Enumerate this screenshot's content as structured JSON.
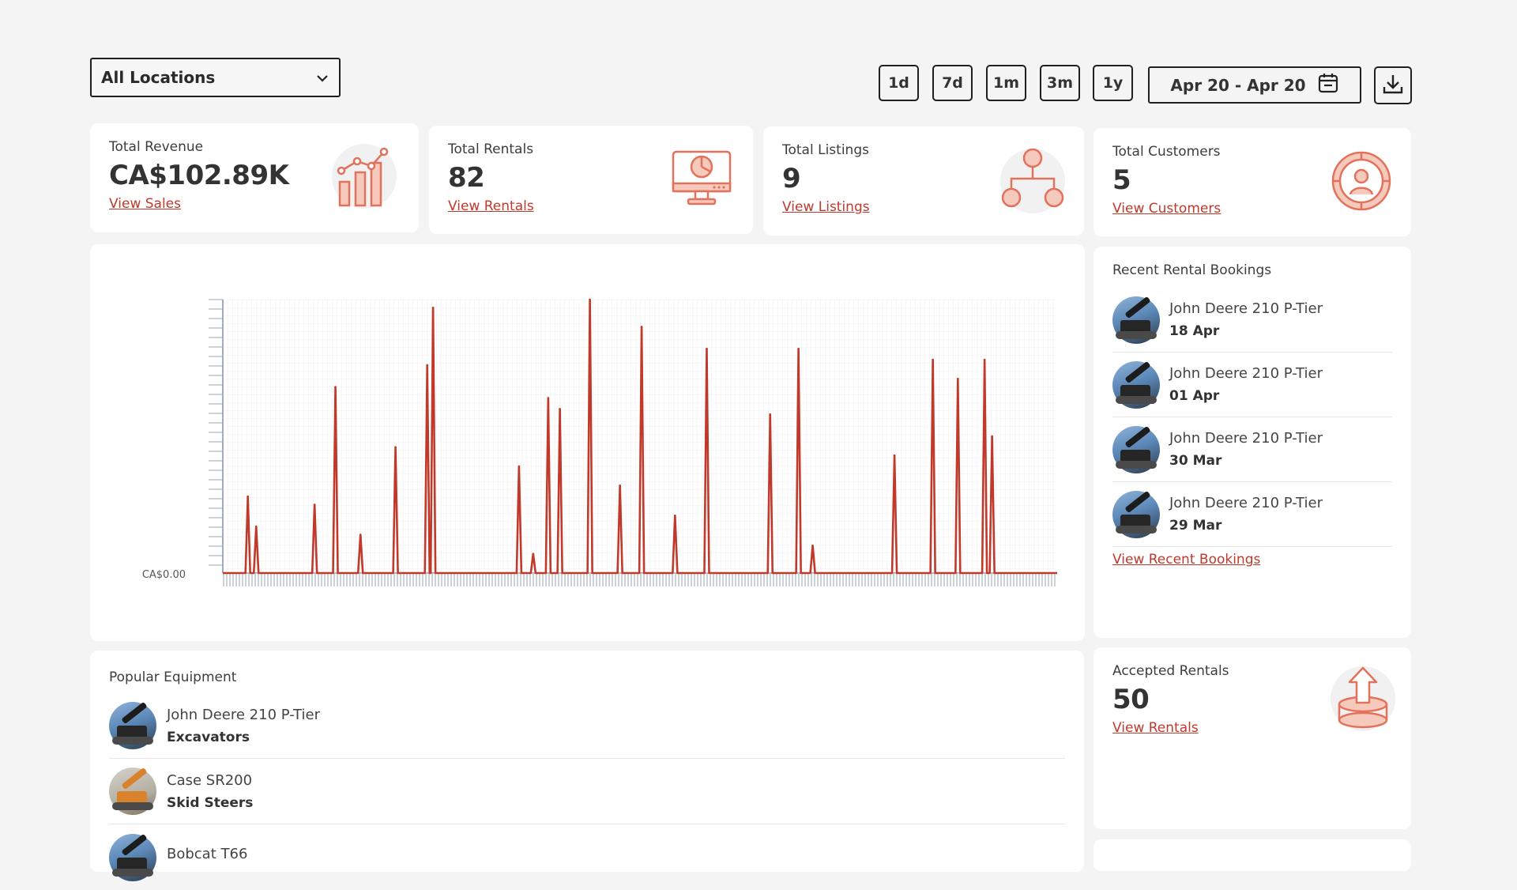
{
  "toolbar": {
    "location_select": "All Locations",
    "ranges": [
      "1d",
      "7d",
      "1m",
      "3m",
      "1y"
    ],
    "date_range": "Apr 20 - Apr 20"
  },
  "stats": {
    "revenue": {
      "title": "Total Revenue",
      "value": "CA$102.89K",
      "link": "View Sales"
    },
    "rentals": {
      "title": "Total Rentals",
      "value": "82",
      "link": "View Rentals"
    },
    "listings": {
      "title": "Total Listings",
      "value": "9",
      "link": "View Listings"
    },
    "customers": {
      "title": "Total Customers",
      "value": "5",
      "link": "View Customers"
    }
  },
  "chart_data": {
    "type": "line",
    "title": "",
    "xlabel": "",
    "ylabel": "",
    "y_tick_labels": [
      "CA$0.00"
    ],
    "grid": true,
    "color": "#c0392b",
    "series": [
      {
        "x": [
          0.03,
          0.04,
          0.11,
          0.135,
          0.165,
          0.207,
          0.245,
          0.252,
          0.355,
          0.372,
          0.39,
          0.404,
          0.44,
          0.476,
          0.502,
          0.542,
          0.58,
          0.656,
          0.69,
          0.707,
          0.805,
          0.851,
          0.881,
          0.913,
          0.922
        ],
        "y": [
          0.28,
          0.17,
          0.25,
          0.68,
          0.14,
          0.46,
          0.76,
          0.97,
          0.39,
          0.07,
          0.64,
          0.6,
          1.0,
          0.32,
          0.9,
          0.21,
          0.82,
          0.58,
          0.82,
          0.1,
          0.43,
          0.78,
          0.71,
          0.78,
          0.5
        ]
      }
    ]
  },
  "recent_bookings": {
    "title": "Recent Rental Bookings",
    "items": [
      {
        "name": "John Deere 210 P-Tier",
        "date": "18 Apr"
      },
      {
        "name": "John Deere 210 P-Tier",
        "date": "01 Apr"
      },
      {
        "name": "John Deere 210 P-Tier",
        "date": "30 Mar"
      },
      {
        "name": "John Deere 210 P-Tier",
        "date": "29 Mar"
      }
    ],
    "link": "View Recent Bookings"
  },
  "popular": {
    "title": "Popular Equipment",
    "items": [
      {
        "name": "John Deere 210 P-Tier",
        "category": "Excavators"
      },
      {
        "name": "Case SR200",
        "category": "Skid Steers"
      },
      {
        "name": "Bobcat T66",
        "category": ""
      }
    ]
  },
  "accepted": {
    "title": "Accepted Rentals",
    "value": "50",
    "link": "View Rentals"
  },
  "colors": {
    "accent": "#c0392b",
    "icon": "#e2725b",
    "icon_fill": "#f6c9bd"
  }
}
